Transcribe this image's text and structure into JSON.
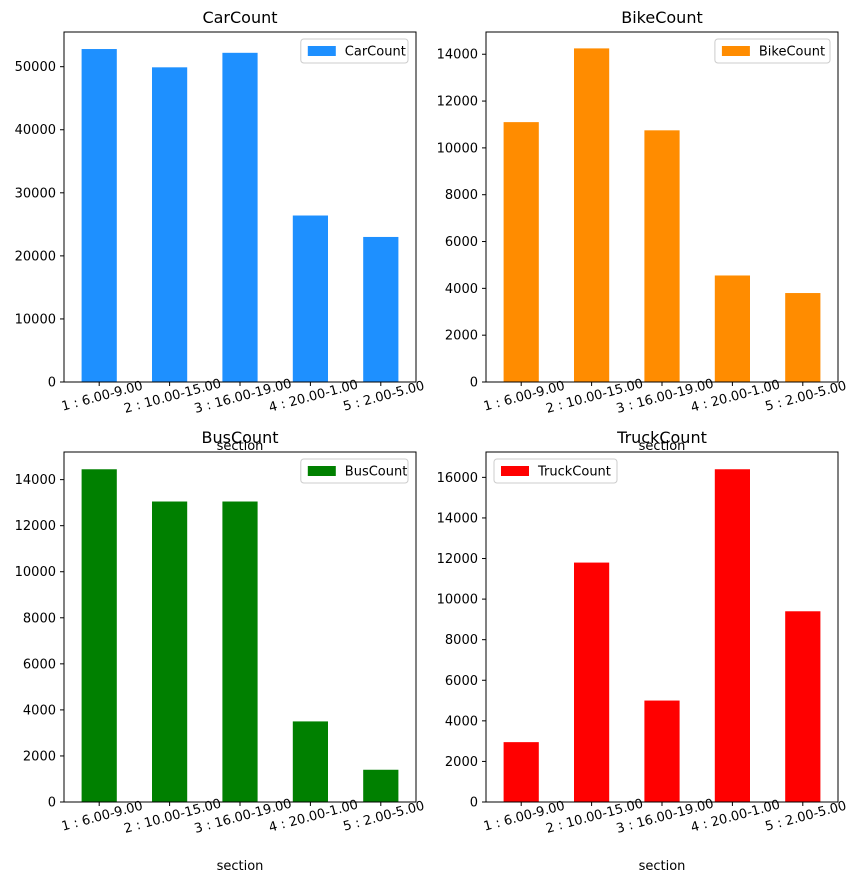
{
  "chart_data": [
    {
      "type": "bar",
      "title": "CarCount",
      "xlabel": "section",
      "ylabel": "",
      "categories": [
        "1 : 6.00-9.00",
        "2 : 10.00-15.00",
        "3 : 16.00-19.00",
        "4 : 20.00-1.00",
        "5 : 2.00-5.00"
      ],
      "series": [
        {
          "name": "CarCount",
          "values": [
            52800,
            49900,
            52200,
            26400,
            23000
          ]
        }
      ],
      "color": "#1e90ff",
      "ylim": [
        0,
        55500
      ],
      "yticks": [
        0,
        10000,
        20000,
        30000,
        40000,
        50000
      ],
      "legend_position": "top-right"
    },
    {
      "type": "bar",
      "title": "BikeCount",
      "xlabel": "section",
      "ylabel": "",
      "categories": [
        "1 : 6.00-9.00",
        "2 : 10.00-15.00",
        "3 : 16.00-19.00",
        "4 : 20.00-1.00",
        "5 : 2.00-5.00"
      ],
      "series": [
        {
          "name": "BikeCount",
          "values": [
            11100,
            14250,
            10750,
            4550,
            3800
          ]
        }
      ],
      "color": "#ff8c00",
      "ylim": [
        0,
        14950
      ],
      "yticks": [
        0,
        2000,
        4000,
        6000,
        8000,
        10000,
        12000,
        14000
      ],
      "legend_position": "top-right"
    },
    {
      "type": "bar",
      "title": "BusCount",
      "xlabel": "section",
      "ylabel": "",
      "categories": [
        "1 : 6.00-9.00",
        "2 : 10.00-15.00",
        "3 : 16.00-19.00",
        "4 : 20.00-1.00",
        "5 : 2.00-5.00"
      ],
      "series": [
        {
          "name": "BusCount",
          "values": [
            14450,
            13050,
            13050,
            3500,
            1400
          ]
        }
      ],
      "color": "#008000",
      "ylim": [
        0,
        15200
      ],
      "yticks": [
        0,
        2000,
        4000,
        6000,
        8000,
        10000,
        12000,
        14000
      ],
      "legend_position": "top-right"
    },
    {
      "type": "bar",
      "title": "TruckCount",
      "xlabel": "section",
      "ylabel": "",
      "categories": [
        "1 : 6.00-9.00",
        "2 : 10.00-15.00",
        "3 : 16.00-19.00",
        "4 : 20.00-1.00",
        "5 : 2.00-5.00"
      ],
      "series": [
        {
          "name": "TruckCount",
          "values": [
            2950,
            11800,
            5000,
            16400,
            9400
          ]
        }
      ],
      "color": "#ff0000",
      "ylim": [
        0,
        17250
      ],
      "yticks": [
        0,
        2000,
        4000,
        6000,
        8000,
        10000,
        12000,
        14000,
        16000
      ],
      "legend_position": "top-left"
    }
  ]
}
